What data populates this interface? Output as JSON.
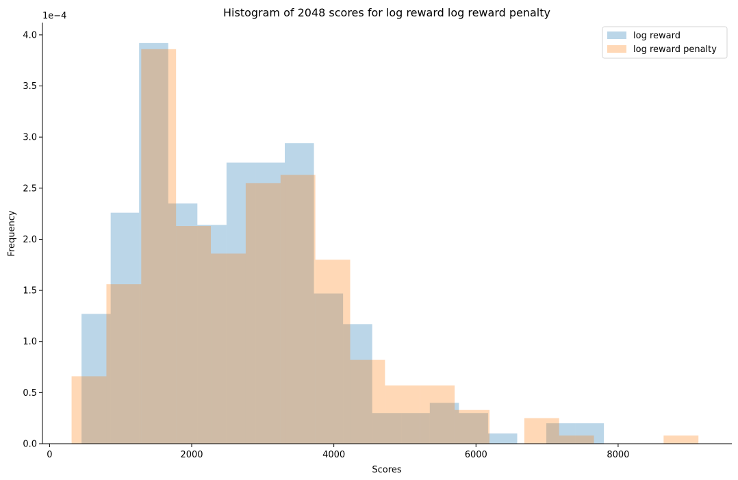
{
  "chart_data": {
    "type": "histogram",
    "title": "Histogram of 2048 scores for log reward log reward penalty",
    "xlabel": "Scores",
    "ylabel": "Frequency",
    "y_offset_label": "1e−4",
    "xlim": [
      -100,
      9600
    ],
    "ylim": [
      0,
      0.000412
    ],
    "x_ticks": [
      0,
      2000,
      4000,
      6000,
      8000
    ],
    "x_tick_labels": [
      "0",
      "2000",
      "4000",
      "6000",
      "8000"
    ],
    "y_ticks": [
      0,
      5e-05,
      0.0001,
      0.00015,
      0.0002,
      0.00025,
      0.0003,
      0.00035,
      0.0004
    ],
    "y_tick_labels": [
      "0.0",
      "0.5",
      "1.0",
      "1.5",
      "2.0",
      "2.5",
      "3.0",
      "3.5",
      "4.0"
    ],
    "legend_position": "top-right",
    "grid": false,
    "series": [
      {
        "name": "log reward",
        "color": "#1f77b4",
        "alpha": 0.3,
        "bin_edges": [
          450,
          860,
          1260,
          1670,
          2080,
          2490,
          2900,
          3310,
          3720,
          4130,
          4540,
          4950,
          5350,
          5760,
          6170,
          6580,
          6990,
          7400,
          7800
        ],
        "values": [
          0.000127,
          0.000226,
          0.000392,
          0.000235,
          0.000214,
          0.000275,
          0.000275,
          0.000294,
          0.000147,
          0.000117,
          3e-05,
          3e-05,
          4e-05,
          3e-05,
          1e-05,
          0.0,
          2e-05,
          2e-05
        ]
      },
      {
        "name": "log reward penalty",
        "color": "#ff7f0e",
        "alpha": 0.3,
        "bin_edges": [
          310,
          800,
          1290,
          1780,
          2270,
          2760,
          3250,
          3740,
          4230,
          4720,
          5210,
          5700,
          6190,
          6680,
          7170,
          7660,
          8150,
          8640,
          9130
        ],
        "values": [
          6.6e-05,
          0.000156,
          0.000386,
          0.000213,
          0.000186,
          0.000255,
          0.000263,
          0.00018,
          8.2e-05,
          5.7e-05,
          5.7e-05,
          3.3e-05,
          0.0,
          2.5e-05,
          8e-06,
          0.0,
          0.0,
          8e-06
        ]
      }
    ]
  }
}
